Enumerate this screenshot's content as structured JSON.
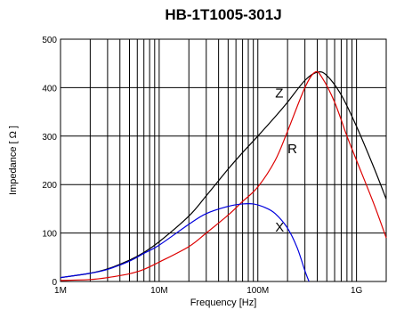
{
  "chart_data": {
    "type": "line",
    "title": "HB-1T1005-301J",
    "xlabel": "Frequency [Hz]",
    "ylabel": "Impedance [ Ω ]",
    "x_scale": "log",
    "xlim": [
      1000000,
      2000000000
    ],
    "ylim": [
      0,
      500
    ],
    "x_ticks": [
      {
        "value": 1000000,
        "label": "1M"
      },
      {
        "value": 10000000,
        "label": "10M"
      },
      {
        "value": 100000000,
        "label": "100M"
      },
      {
        "value": 1000000000,
        "label": "1G"
      }
    ],
    "y_ticks": [
      {
        "value": 0,
        "label": "0"
      },
      {
        "value": 100,
        "label": "100"
      },
      {
        "value": 200,
        "label": "200"
      },
      {
        "value": 300,
        "label": "300"
      },
      {
        "value": 400,
        "label": "400"
      },
      {
        "value": 500,
        "label": "500"
      }
    ],
    "grid": true,
    "series": [
      {
        "name": "Z",
        "color": "#000000",
        "points": [
          [
            1000000,
            8
          ],
          [
            2000000,
            17
          ],
          [
            3000000,
            26
          ],
          [
            5000000,
            44
          ],
          [
            7000000,
            60
          ],
          [
            10000000,
            82
          ],
          [
            20000000,
            135
          ],
          [
            30000000,
            177
          ],
          [
            50000000,
            232
          ],
          [
            70000000,
            266
          ],
          [
            100000000,
            300
          ],
          [
            150000000,
            340
          ],
          [
            200000000,
            370
          ],
          [
            300000000,
            415
          ],
          [
            400000000,
            432
          ],
          [
            500000000,
            425
          ],
          [
            700000000,
            385
          ],
          [
            1000000000,
            320
          ],
          [
            1500000000,
            235
          ],
          [
            2000000000,
            170
          ]
        ]
      },
      {
        "name": "R",
        "color": "#dd0000",
        "points": [
          [
            1000000,
            2
          ],
          [
            2000000,
            4
          ],
          [
            3000000,
            8
          ],
          [
            5000000,
            16
          ],
          [
            7000000,
            25
          ],
          [
            10000000,
            40
          ],
          [
            20000000,
            72
          ],
          [
            30000000,
            100
          ],
          [
            50000000,
            137
          ],
          [
            70000000,
            165
          ],
          [
            100000000,
            195
          ],
          [
            150000000,
            250
          ],
          [
            200000000,
            310
          ],
          [
            300000000,
            400
          ],
          [
            380000000,
            432
          ],
          [
            450000000,
            420
          ],
          [
            600000000,
            370
          ],
          [
            800000000,
            300
          ],
          [
            1000000000,
            250
          ],
          [
            1500000000,
            160
          ],
          [
            2000000000,
            90
          ]
        ]
      },
      {
        "name": "X",
        "color": "#0000dd",
        "points": [
          [
            1000000,
            8
          ],
          [
            2000000,
            17
          ],
          [
            3000000,
            25
          ],
          [
            5000000,
            42
          ],
          [
            7000000,
            58
          ],
          [
            10000000,
            75
          ],
          [
            20000000,
            118
          ],
          [
            30000000,
            140
          ],
          [
            50000000,
            155
          ],
          [
            70000000,
            160
          ],
          [
            90000000,
            160
          ],
          [
            120000000,
            152
          ],
          [
            150000000,
            140
          ],
          [
            200000000,
            110
          ],
          [
            250000000,
            70
          ],
          [
            300000000,
            22
          ],
          [
            330000000,
            0
          ]
        ]
      }
    ],
    "annotations": [
      {
        "text": "Z",
        "x": 150000000,
        "y": 380
      },
      {
        "text": "R",
        "x": 200000000,
        "y": 265
      },
      {
        "text": "X",
        "x": 150000000,
        "y": 103
      }
    ]
  }
}
